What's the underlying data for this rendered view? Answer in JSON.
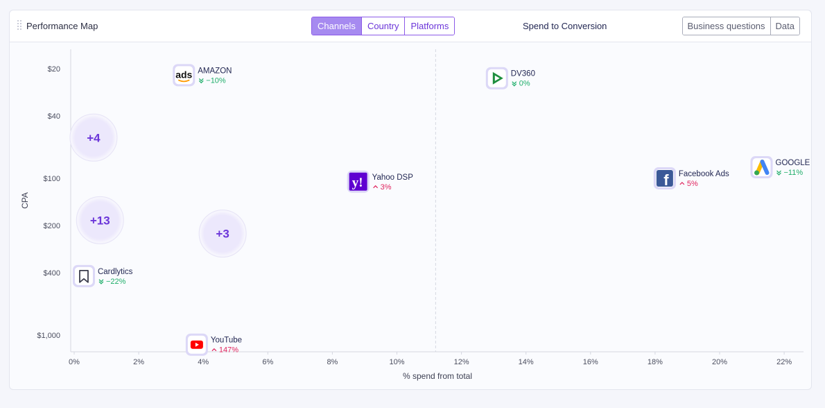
{
  "header": {
    "title": "Performance Map",
    "tabs": [
      {
        "label": "Channels",
        "active": true
      },
      {
        "label": "Country",
        "active": false
      },
      {
        "label": "Platforms",
        "active": false
      }
    ],
    "center_title": "Spend to Conversion",
    "actions": [
      {
        "label": "Business questions"
      },
      {
        "label": "Data"
      }
    ]
  },
  "colors": {
    "accent": "#8c5ae8",
    "up": "#e0245e",
    "down": "#1fae6a",
    "icon_bg": "#dcd8f7"
  },
  "chart_data": {
    "type": "scatter",
    "xlabel": "% spend from total",
    "ylabel": "CPA",
    "x_ticks": [
      "0%",
      "2%",
      "4%",
      "6%",
      "8%",
      "10%",
      "12%",
      "14%",
      "16%",
      "18%",
      "20%",
      "22%"
    ],
    "xlim": [
      0,
      22.5
    ],
    "y_scale": "log",
    "y_ticks": [
      "$20",
      "$40",
      "$100",
      "$200",
      "$400",
      "$1,000"
    ],
    "y_tick_values": [
      20,
      40,
      100,
      200,
      400,
      1000
    ],
    "ylim": [
      17,
      1300
    ],
    "reference_line_x": 11.2,
    "points": [
      {
        "name": "AMAZON",
        "x": 3.4,
        "y": 22,
        "change": "−10%",
        "direction": "down",
        "icon": "amazon-ads-icon"
      },
      {
        "name": "DV360",
        "x": 13.1,
        "y": 23,
        "change": "0%",
        "direction": "down",
        "icon": "dv360-icon"
      },
      {
        "name": "Yahoo DSP",
        "x": 8.8,
        "y": 105,
        "change": "3%",
        "direction": "up",
        "icon": "yahoo-icon"
      },
      {
        "name": "Facebook Ads",
        "x": 18.3,
        "y": 100,
        "change": "5%",
        "direction": "up",
        "icon": "facebook-icon"
      },
      {
        "name": "GOOGLE",
        "x": 21.3,
        "y": 85,
        "change": "−11%",
        "direction": "down",
        "icon": "google-ads-icon"
      },
      {
        "name": "Cardlytics",
        "x": 0.3,
        "y": 420,
        "change": "−22%",
        "direction": "down",
        "icon": "bookmark-icon"
      },
      {
        "name": "YouTube",
        "x": 3.8,
        "y": 1150,
        "change": "147%",
        "direction": "up",
        "icon": "youtube-icon"
      }
    ],
    "clusters": [
      {
        "label": "+4",
        "x": 0.6,
        "y": 55
      },
      {
        "label": "+13",
        "x": 0.8,
        "y": 185
      },
      {
        "label": "+3",
        "x": 4.6,
        "y": 225
      }
    ]
  }
}
